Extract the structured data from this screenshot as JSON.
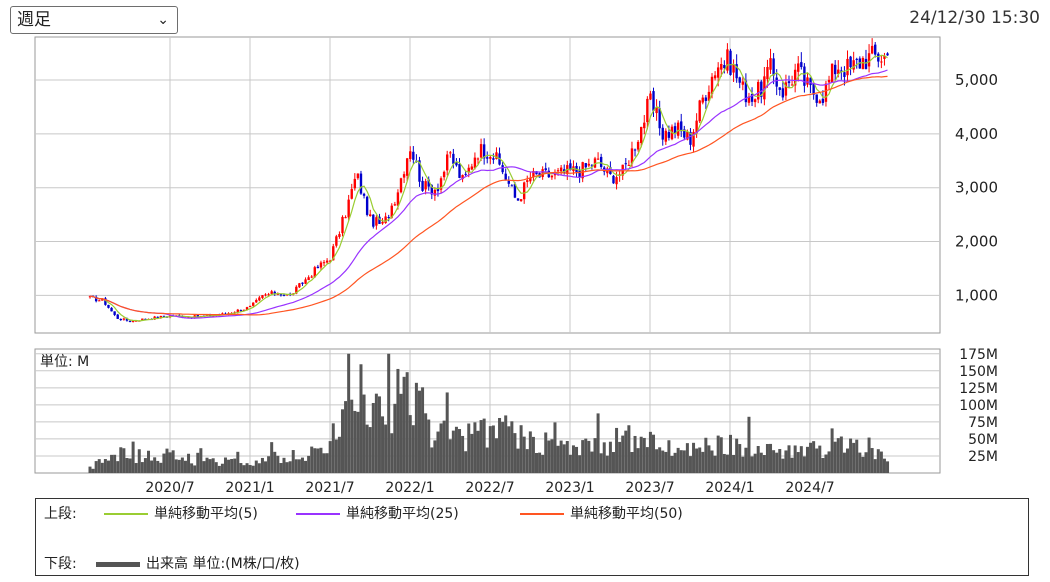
{
  "controls": {
    "period_label": "週足",
    "timestamp": "24/12/30 15:30"
  },
  "upper_panel": {
    "y_ticks": [
      "1,000",
      "2,000",
      "3,000",
      "4,000",
      "5,000"
    ],
    "y_tick_values": [
      1000,
      2000,
      3000,
      4000,
      5000
    ],
    "ylim": [
      300,
      5800
    ]
  },
  "lower_panel": {
    "unit_label": "単位: M",
    "y_ticks": [
      "25M",
      "50M",
      "75M",
      "100M",
      "125M",
      "150M",
      "175M"
    ],
    "y_tick_values": [
      25,
      50,
      75,
      100,
      125,
      150,
      175
    ],
    "ylim": [
      0,
      182
    ]
  },
  "x_ticks": [
    "2020/7",
    "2021/1",
    "2021/7",
    "2022/1",
    "2022/7",
    "2023/1",
    "2023/7",
    "2024/1",
    "2024/7"
  ],
  "legend": {
    "upper_label": "上段:",
    "lower_label": "下段:",
    "ma5": "単純移動平均(5)",
    "ma25": "単純移動平均(25)",
    "ma50": "単純移動平均(50)",
    "volume": "出来高 単位:(M株/口/枚)"
  },
  "colors": {
    "up": "#ff0000",
    "down": "#0000cc",
    "ma5": "#9acd32",
    "ma25": "#9933ff",
    "ma50": "#ff5522",
    "volume": "#555555",
    "grid": "#c8c8c8"
  },
  "chart_data": {
    "type": "candlestick-with-volume",
    "frequency": "weekly",
    "x_start": "2020-01",
    "x_end": "2024-12",
    "close_anchors": [
      [
        "2020-01",
        950
      ],
      [
        "2020-02",
        900
      ],
      [
        "2020-03",
        580
      ],
      [
        "2020-04",
        520
      ],
      [
        "2020-05",
        560
      ],
      [
        "2020-07",
        620
      ],
      [
        "2020-09",
        600
      ],
      [
        "2020-11",
        650
      ],
      [
        "2021-01",
        780
      ],
      [
        "2021-02",
        1000
      ],
      [
        "2021-03",
        1050
      ],
      [
        "2021-04",
        1000
      ],
      [
        "2021-05",
        1250
      ],
      [
        "2021-06",
        1500
      ],
      [
        "2021-07",
        1700
      ],
      [
        "2021-08",
        2400
      ],
      [
        "2021-09",
        3250
      ],
      [
        "2021-10",
        2400
      ],
      [
        "2021-11",
        2300
      ],
      [
        "2021-12",
        2900
      ],
      [
        "2022-01",
        3800
      ],
      [
        "2022-02",
        3000
      ],
      [
        "2022-03",
        3000
      ],
      [
        "2022-04",
        3600
      ],
      [
        "2022-05",
        3100
      ],
      [
        "2022-06",
        3700
      ],
      [
        "2022-07",
        3700
      ],
      [
        "2022-08",
        3300
      ],
      [
        "2022-09",
        2750
      ],
      [
        "2022-10",
        3200
      ],
      [
        "2022-12",
        3250
      ],
      [
        "2023-02",
        3350
      ],
      [
        "2023-03",
        3500
      ],
      [
        "2023-04",
        3200
      ],
      [
        "2023-05",
        3300
      ],
      [
        "2023-06",
        3900
      ],
      [
        "2023-07",
        4600
      ],
      [
        "2023-08",
        4000
      ],
      [
        "2023-09",
        4100
      ],
      [
        "2023-10",
        3900
      ],
      [
        "2023-11",
        4700
      ],
      [
        "2023-12",
        5300
      ],
      [
        "2024-01",
        5350
      ],
      [
        "2024-02",
        4800
      ],
      [
        "2024-03",
        4700
      ],
      [
        "2024-04",
        5200
      ],
      [
        "2024-05",
        4800
      ],
      [
        "2024-06",
        5200
      ],
      [
        "2024-07",
        4800
      ],
      [
        "2024-08",
        4750
      ],
      [
        "2024-09",
        5300
      ],
      [
        "2024-10",
        5200
      ],
      [
        "2024-11",
        5400
      ],
      [
        "2024-12",
        5450
      ]
    ],
    "volume_anchors_m": [
      [
        "2020-01",
        8
      ],
      [
        "2020-03",
        30
      ],
      [
        "2020-05",
        25
      ],
      [
        "2020-07",
        25
      ],
      [
        "2020-10",
        15
      ],
      [
        "2021-01",
        18
      ],
      [
        "2021-04",
        25
      ],
      [
        "2021-06",
        30
      ],
      [
        "2021-07",
        40
      ],
      [
        "2021-08",
        110
      ],
      [
        "2021-09",
        120
      ],
      [
        "2021-10",
        90
      ],
      [
        "2021-11",
        85
      ],
      [
        "2021-12",
        95
      ],
      [
        "2022-01",
        120
      ],
      [
        "2022-02",
        85
      ],
      [
        "2022-03",
        55
      ],
      [
        "2022-06",
        55
      ],
      [
        "2022-07",
        60
      ],
      [
        "2022-09",
        60
      ],
      [
        "2022-10",
        45
      ],
      [
        "2023-01",
        38
      ],
      [
        "2023-03",
        40
      ],
      [
        "2023-05",
        50
      ],
      [
        "2023-08",
        42
      ],
      [
        "2023-11",
        38
      ],
      [
        "2024-01",
        42
      ],
      [
        "2024-04",
        35
      ],
      [
        "2024-08",
        32
      ],
      [
        "2024-10",
        40
      ],
      [
        "2024-12",
        25
      ]
    ],
    "ma_periods": [
      5,
      25,
      50
    ]
  }
}
